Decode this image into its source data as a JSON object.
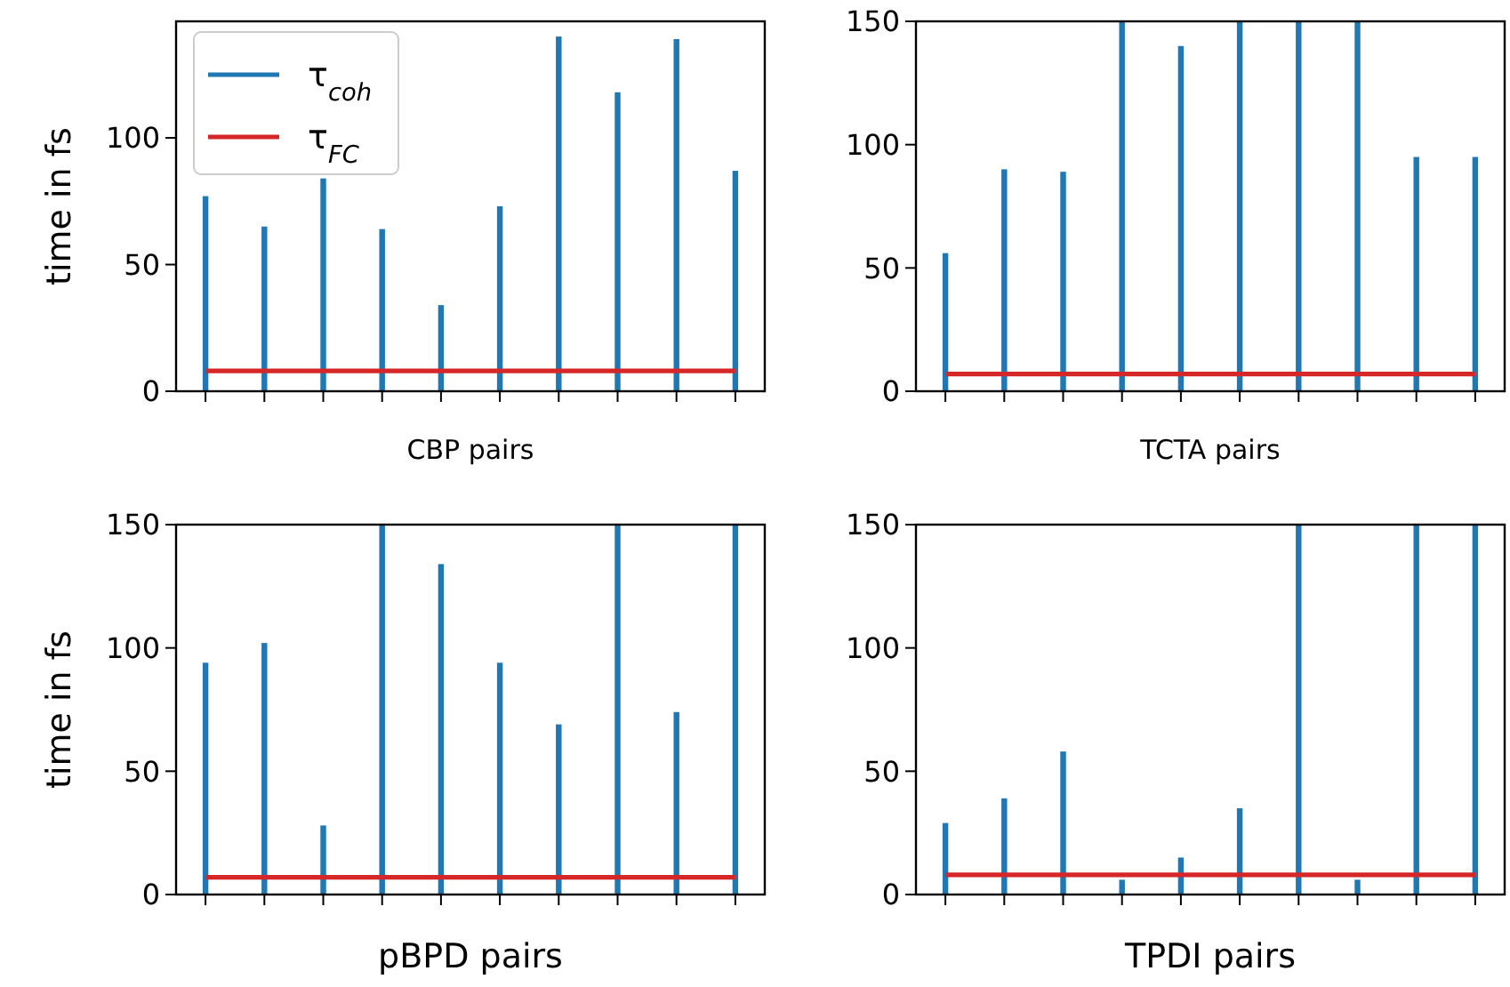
{
  "chart_data": [
    {
      "type": "bar",
      "xlabel": "CBP pairs",
      "ylabel": "time in fs",
      "categories": [
        null,
        null,
        null,
        null,
        null,
        null,
        null,
        null,
        null,
        null
      ],
      "ylim": [
        0,
        146
      ],
      "yticks": [
        0,
        50,
        100
      ],
      "tick_labels": "y",
      "legend": "top left",
      "series": [
        {
          "name": "τ$_{coh}$",
          "color": "#1f77b4",
          "values": [
            77,
            65,
            84,
            64,
            34,
            73,
            140,
            118,
            139,
            87
          ]
        }
      ],
      "ref_lines": [
        {
          "axis": "y",
          "value": 8,
          "label": "τ$_{FC}$",
          "color": "#d62728"
        }
      ]
    },
    {
      "type": "bar",
      "xlabel": "TCTA pairs",
      "categories": [
        null,
        null,
        null,
        null,
        null,
        null,
        null,
        null,
        null,
        null
      ],
      "ylim": [
        0,
        150
      ],
      "yticks": [
        0,
        50,
        100,
        150
      ],
      "tick_labels": "y",
      "series": [
        {
          "color": "#1f77b4",
          "values": [
            56,
            90,
            89,
            150,
            140,
            150,
            150,
            150,
            95,
            95
          ]
        }
      ],
      "ref_lines": [
        {
          "axis": "y",
          "value": 7,
          "color": "#d62728"
        }
      ]
    },
    {
      "type": "bar",
      "xlabel": "pBPD pairs",
      "ylabel": "time in fs",
      "categories": [
        null,
        null,
        null,
        null,
        null,
        null,
        null,
        null,
        null,
        null
      ],
      "ylim": [
        0,
        150
      ],
      "yticks": [
        0,
        50,
        100,
        150
      ],
      "tick_labels": "y",
      "series": [
        {
          "color": "#1f77b4",
          "values": [
            94,
            102,
            28,
            150,
            134,
            94,
            69,
            150,
            74,
            150
          ]
        }
      ],
      "ref_lines": [
        {
          "axis": "y",
          "value": 7,
          "color": "#d62728"
        }
      ]
    },
    {
      "type": "bar",
      "xlabel": "TPDI pairs",
      "categories": [
        null,
        null,
        null,
        null,
        null,
        null,
        null,
        null,
        null,
        null
      ],
      "ylim": [
        0,
        150
      ],
      "yticks": [
        0,
        50,
        100,
        150
      ],
      "tick_labels": "y",
      "series": [
        {
          "color": "#1f77b4",
          "values": [
            29,
            39,
            58,
            6,
            15,
            35,
            150,
            6,
            150,
            150
          ]
        }
      ],
      "ref_lines": [
        {
          "axis": "y",
          "value": 8,
          "color": "#d62728"
        }
      ]
    }
  ]
}
